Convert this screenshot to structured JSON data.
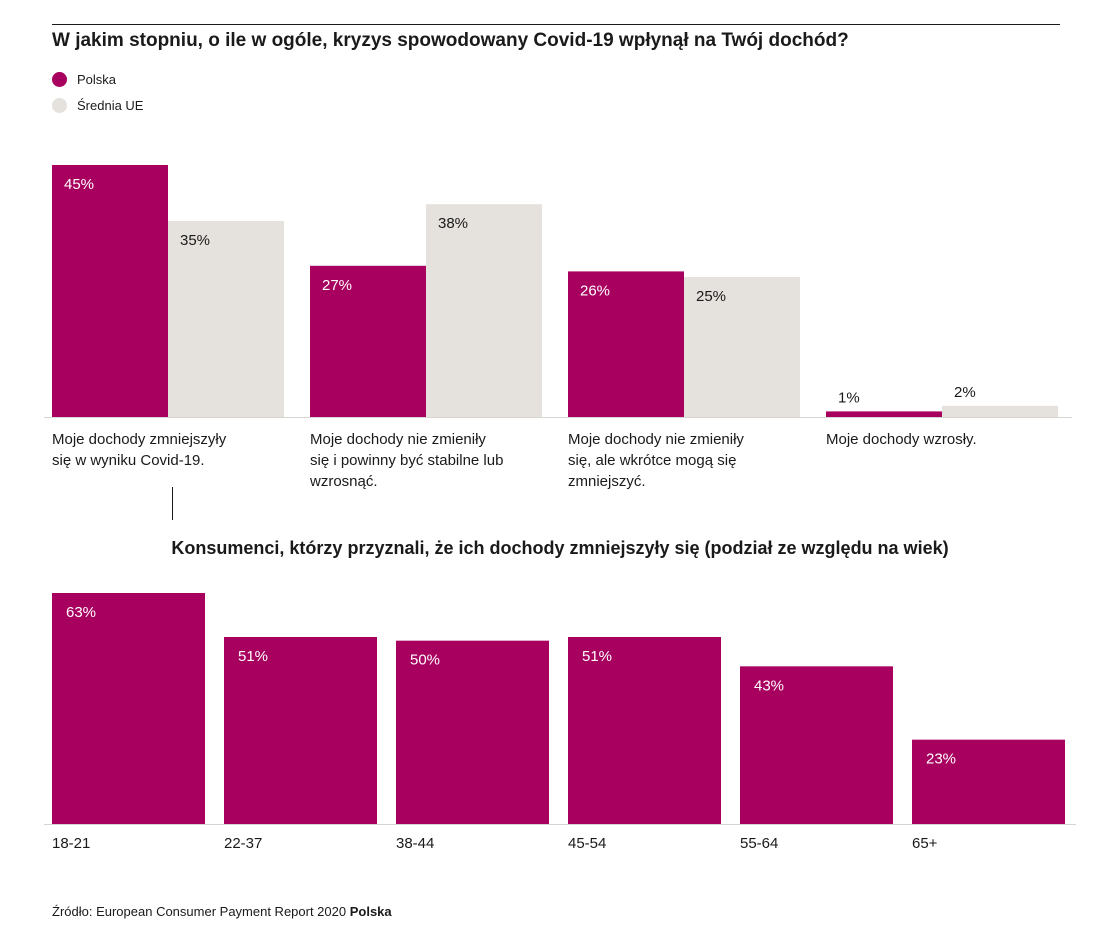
{
  "title": "W jakim stopniu, o ile w ogóle, kryzys spowodowany Covid-19 wpłynął na Twój dochód?",
  "legend": [
    {
      "label": "Polska",
      "color": "#a8005f"
    },
    {
      "label": "Średnia UE",
      "color": "#e5e1dc"
    }
  ],
  "chart_data": [
    {
      "type": "bar",
      "title": "W jakim stopniu, o ile w ogóle, kryzys spowodowany Covid-19 wpłynął na Twój dochód?",
      "categories": [
        [
          "Moje dochody zmniejszyły",
          "się w wyniku Covid-19."
        ],
        [
          "Moje dochody nie zmieniły",
          "się i powinny być stabilne lub",
          "wzrosnąć."
        ],
        [
          "Moje dochody nie zmieniły",
          "się, ale wkrótce mogą się",
          "zmniejszyć."
        ],
        [
          "Moje dochody wzrosły."
        ]
      ],
      "series": [
        {
          "name": "Polska",
          "values": [
            45,
            27,
            26,
            1
          ],
          "labels": [
            "45%",
            "27%",
            "26%",
            "1%"
          ],
          "color": "#a8005f"
        },
        {
          "name": "Średnia UE",
          "values": [
            35,
            38,
            25,
            2
          ],
          "labels": [
            "35%",
            "38%",
            "25%",
            "2%"
          ],
          "color": "#e5e1dc"
        }
      ],
      "ylim": [
        0,
        45
      ],
      "grid": false,
      "legend_position": "top-left"
    },
    {
      "type": "bar",
      "title": "Konsumenci, którzy przyznali, że ich dochody zmniejszyły się (podział ze względu na wiek)",
      "categories": [
        "18-21",
        "22-37",
        "38-44",
        "45-54",
        "55-64",
        "65+"
      ],
      "series": [
        {
          "name": "Polska",
          "values": [
            63,
            51,
            50,
            51,
            43,
            23
          ],
          "labels": [
            "63%",
            "51%",
            "50%",
            "51%",
            "43%",
            "23%"
          ],
          "color": "#a8005f"
        }
      ],
      "ylim": [
        0,
        63
      ],
      "grid": false
    }
  ],
  "source": {
    "prefix": "Źródło: European Consumer Payment Report 2020 ",
    "bold": "Polska"
  }
}
